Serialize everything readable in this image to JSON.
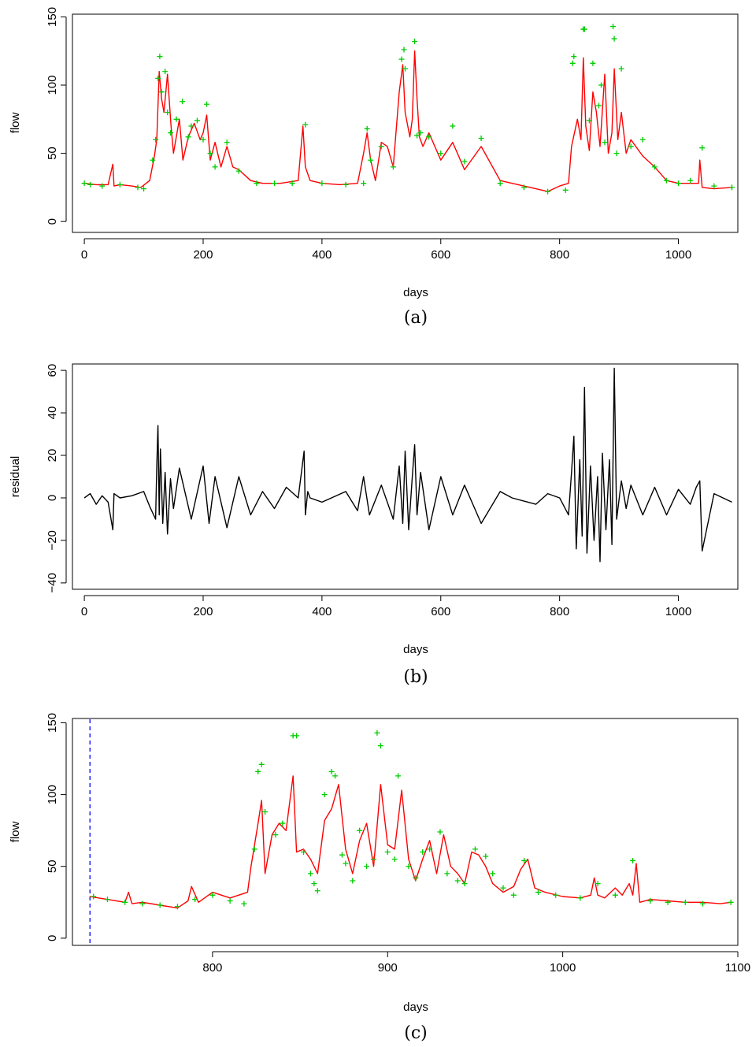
{
  "chart_data": [
    {
      "panel": "a",
      "type": "line",
      "caption": "(a)",
      "xlabel": "days",
      "ylabel": "flow",
      "xlim": [
        -20,
        1100
      ],
      "ylim": [
        -8,
        152
      ],
      "xticks": [
        0,
        200,
        400,
        600,
        800,
        1000
      ],
      "yticks": [
        0,
        50,
        100,
        150
      ],
      "series": [
        {
          "style": "line",
          "color": "#ff0000",
          "x": [
            0,
            20,
            40,
            48,
            50,
            60,
            80,
            95,
            110,
            118,
            122,
            126,
            130,
            134,
            140,
            146,
            150,
            160,
            166,
            175,
            185,
            195,
            200,
            206,
            212,
            220,
            230,
            240,
            250,
            260,
            280,
            300,
            330,
            360,
            368,
            372,
            380,
            400,
            430,
            460,
            470,
            476,
            482,
            490,
            500,
            510,
            520,
            530,
            536,
            540,
            548,
            552,
            556,
            560,
            564,
            570,
            580,
            600,
            620,
            640,
            668,
            700,
            720,
            760,
            780,
            800,
            815,
            820,
            830,
            836,
            840,
            844,
            850,
            856,
            862,
            868,
            876,
            882,
            888,
            892,
            898,
            904,
            912,
            920,
            940,
            960,
            980,
            1000,
            1020,
            1034,
            1036,
            1040,
            1060,
            1090
          ],
          "y": [
            28,
            27,
            27,
            42,
            26,
            27,
            26,
            25,
            30,
            48,
            60,
            110,
            90,
            80,
            108,
            70,
            50,
            75,
            45,
            62,
            72,
            60,
            65,
            78,
            45,
            58,
            40,
            55,
            40,
            38,
            30,
            28,
            28,
            30,
            70,
            40,
            30,
            28,
            27,
            28,
            50,
            65,
            45,
            30,
            58,
            55,
            40,
            95,
            115,
            80,
            62,
            75,
            125,
            90,
            62,
            55,
            65,
            45,
            58,
            38,
            55,
            30,
            28,
            24,
            22,
            26,
            28,
            55,
            75,
            60,
            120,
            70,
            52,
            95,
            80,
            55,
            108,
            50,
            65,
            112,
            60,
            80,
            50,
            60,
            48,
            40,
            30,
            28,
            28,
            28,
            45,
            25,
            24,
            25
          ]
        },
        {
          "style": "points",
          "color": "#00cc00",
          "x": [
            0,
            10,
            30,
            60,
            90,
            100,
            115,
            120,
            124,
            127,
            130,
            136,
            140,
            145,
            155,
            165,
            175,
            180,
            190,
            200,
            206,
            212,
            220,
            240,
            260,
            290,
            320,
            350,
            372,
            400,
            440,
            470,
            476,
            482,
            500,
            520,
            534,
            538,
            540,
            556,
            560,
            566,
            580,
            600,
            620,
            640,
            668,
            700,
            740,
            780,
            810,
            822,
            824,
            840,
            842,
            850,
            856,
            866,
            870,
            876,
            890,
            892,
            896,
            904,
            920,
            940,
            960,
            980,
            1000,
            1020,
            1040,
            1060,
            1090
          ],
          "y": [
            28,
            27,
            26,
            27,
            25,
            24,
            45,
            60,
            105,
            121,
            95,
            110,
            80,
            65,
            75,
            88,
            62,
            70,
            74,
            60,
            86,
            50,
            40,
            58,
            37,
            28,
            28,
            28,
            71,
            28,
            27,
            28,
            68,
            45,
            55,
            40,
            119,
            126,
            112,
            132,
            63,
            65,
            62,
            50,
            70,
            44,
            61,
            28,
            25,
            22,
            23,
            116,
            121,
            141,
            141,
            74,
            116,
            85,
            100,
            58,
            143,
            134,
            50,
            112,
            55,
            60,
            40,
            30,
            28,
            30,
            54,
            26,
            25
          ]
        }
      ]
    },
    {
      "panel": "b",
      "type": "line",
      "caption": "(b)",
      "xlabel": "days",
      "ylabel": "residual",
      "xlim": [
        -20,
        1100
      ],
      "ylim": [
        -43,
        63
      ],
      "xticks": [
        0,
        200,
        400,
        600,
        800,
        1000
      ],
      "yticks": [
        -40,
        -20,
        0,
        20,
        40,
        60
      ],
      "series": [
        {
          "style": "line",
          "color": "#000000",
          "x": [
            0,
            10,
            20,
            30,
            40,
            48,
            50,
            60,
            80,
            100,
            110,
            120,
            122,
            124,
            126,
            128,
            132,
            136,
            140,
            145,
            150,
            160,
            180,
            200,
            210,
            220,
            240,
            260,
            280,
            300,
            320,
            340,
            360,
            370,
            372,
            376,
            380,
            400,
            440,
            460,
            470,
            480,
            500,
            520,
            530,
            536,
            540,
            546,
            552,
            556,
            560,
            566,
            580,
            600,
            620,
            640,
            668,
            700,
            720,
            760,
            780,
            800,
            815,
            820,
            824,
            828,
            834,
            838,
            842,
            846,
            852,
            858,
            864,
            868,
            872,
            878,
            884,
            888,
            892,
            896,
            904,
            912,
            920,
            940,
            960,
            980,
            1000,
            1020,
            1030,
            1036,
            1040,
            1060,
            1090
          ],
          "y": [
            0,
            2,
            -3,
            1,
            -2,
            -15,
            2,
            0,
            1,
            3,
            -4,
            -10,
            15,
            34,
            -8,
            23,
            -12,
            12,
            -17,
            9,
            -5,
            14,
            -10,
            15,
            -12,
            10,
            -14,
            10,
            -8,
            3,
            -5,
            5,
            0,
            22,
            -8,
            3,
            0,
            -2,
            3,
            -6,
            10,
            -8,
            6,
            -10,
            15,
            -12,
            22,
            -15,
            10,
            25,
            -8,
            12,
            -15,
            10,
            -8,
            6,
            -12,
            3,
            0,
            -3,
            2,
            0,
            -8,
            12,
            29,
            -24,
            18,
            -18,
            52,
            -26,
            15,
            -20,
            10,
            -30,
            21,
            -15,
            18,
            -22,
            61,
            -10,
            8,
            -5,
            6,
            -8,
            5,
            -8,
            4,
            -3,
            5,
            8,
            -25,
            2,
            -2
          ]
        }
      ]
    },
    {
      "panel": "c",
      "type": "line",
      "caption": "(c)",
      "xlabel": "days",
      "ylabel": "flow",
      "xlim": [
        720,
        1100
      ],
      "ylim": [
        -5,
        153
      ],
      "xticks": [
        800,
        900,
        1000,
        1100
      ],
      "yticks": [
        0,
        50,
        100,
        150
      ],
      "vline": {
        "x": 730,
        "color": "#0000ff"
      },
      "series": [
        {
          "style": "line",
          "color": "#ff0000",
          "x": [
            730,
            740,
            750,
            752,
            754,
            760,
            770,
            780,
            786,
            788,
            792,
            800,
            810,
            815,
            820,
            822,
            826,
            828,
            830,
            834,
            838,
            842,
            846,
            848,
            852,
            856,
            860,
            864,
            868,
            872,
            876,
            880,
            884,
            888,
            892,
            896,
            900,
            904,
            908,
            912,
            916,
            920,
            924,
            928,
            932,
            936,
            940,
            944,
            948,
            952,
            956,
            960,
            966,
            972,
            976,
            980,
            984,
            990,
            1000,
            1010,
            1016,
            1018,
            1020,
            1024,
            1030,
            1034,
            1038,
            1040,
            1042,
            1044,
            1050,
            1060,
            1070,
            1080,
            1090,
            1096
          ],
          "y": [
            29,
            27,
            25,
            32,
            24,
            25,
            23,
            21,
            26,
            36,
            25,
            32,
            28,
            30,
            32,
            50,
            80,
            96,
            45,
            72,
            80,
            75,
            113,
            60,
            62,
            55,
            45,
            82,
            90,
            107,
            62,
            45,
            68,
            80,
            50,
            107,
            65,
            62,
            103,
            55,
            40,
            55,
            68,
            45,
            72,
            50,
            45,
            38,
            60,
            58,
            50,
            38,
            32,
            36,
            48,
            55,
            35,
            32,
            29,
            28,
            30,
            42,
            30,
            28,
            35,
            30,
            38,
            30,
            52,
            25,
            27,
            26,
            25,
            25,
            24,
            25
          ]
        },
        {
          "style": "points",
          "color": "#00cc00",
          "x": [
            732,
            740,
            750,
            760,
            770,
            780,
            790,
            800,
            810,
            818,
            824,
            826,
            828,
            830,
            836,
            840,
            846,
            848,
            852,
            856,
            858,
            860,
            864,
            868,
            870,
            874,
            876,
            880,
            884,
            888,
            892,
            894,
            896,
            900,
            904,
            906,
            912,
            916,
            920,
            924,
            930,
            934,
            940,
            944,
            950,
            956,
            960,
            966,
            972,
            978,
            986,
            996,
            1010,
            1020,
            1030,
            1040,
            1050,
            1060,
            1070,
            1080,
            1096
          ],
          "y": [
            29,
            27,
            25,
            24,
            23,
            22,
            27,
            30,
            26,
            24,
            62,
            116,
            121,
            88,
            72,
            80,
            141,
            141,
            60,
            45,
            38,
            33,
            100,
            116,
            113,
            58,
            52,
            40,
            75,
            50,
            55,
            143,
            134,
            60,
            55,
            113,
            50,
            42,
            60,
            62,
            74,
            45,
            40,
            38,
            62,
            57,
            45,
            35,
            30,
            54,
            32,
            30,
            28,
            38,
            30,
            54,
            26,
            25,
            25,
            24,
            25
          ]
        }
      ]
    }
  ]
}
